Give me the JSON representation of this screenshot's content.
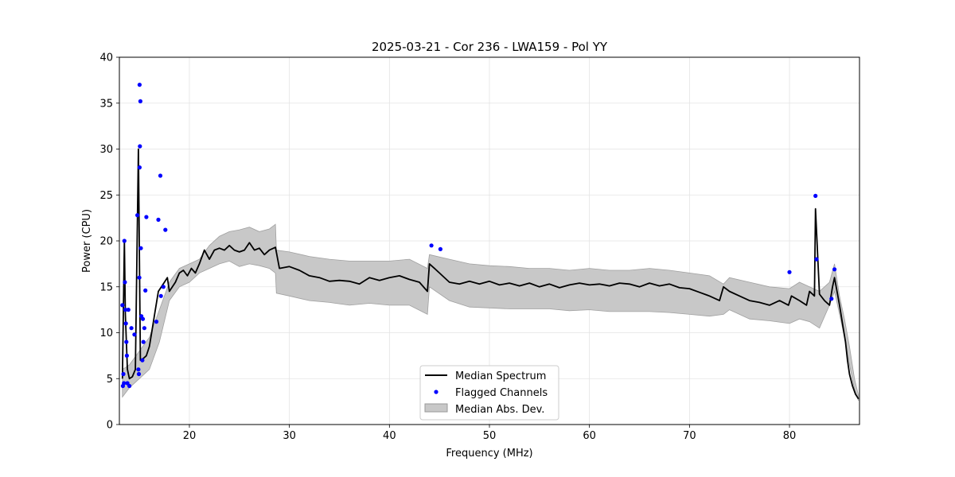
{
  "chart_data": {
    "type": "line",
    "title": "2025-03-21 - Cor 236 - LWA159 - Pol YY",
    "xlabel": "Frequency (MHz)",
    "ylabel": "Power (CPU)",
    "xlim": [
      13,
      87
    ],
    "ylim": [
      0,
      40
    ],
    "xticks": [
      20,
      30,
      40,
      50,
      60,
      70,
      80
    ],
    "yticks": [
      0,
      5,
      10,
      15,
      20,
      25,
      30,
      35,
      40
    ],
    "grid": true,
    "legend_position": "bottom-center",
    "series": [
      {
        "name": "Median Spectrum",
        "kind": "line",
        "color": "#000000",
        "x": [
          13.3,
          13.5,
          13.6,
          13.8,
          14.0,
          14.3,
          14.6,
          14.9,
          15.1,
          15.4,
          15.7,
          16.0,
          16.3,
          16.6,
          16.9,
          17.2,
          17.5,
          17.8,
          18.0,
          18.3,
          18.6,
          19.0,
          19.4,
          19.8,
          20.2,
          20.6,
          21.0,
          21.5,
          22.0,
          22.5,
          23.0,
          23.5,
          24.0,
          24.5,
          25.0,
          25.5,
          26.0,
          26.5,
          27.0,
          27.5,
          28.0,
          28.6,
          29.0,
          30.0,
          31.0,
          32.0,
          33.0,
          34.0,
          35.0,
          36.0,
          37.0,
          38.0,
          39.0,
          40.0,
          41.0,
          42.0,
          43.0,
          43.8,
          44.0,
          44.5,
          45.0,
          46.0,
          47.0,
          48.0,
          49.0,
          50.0,
          51.0,
          52.0,
          53.0,
          54.0,
          55.0,
          56.0,
          57.0,
          58.0,
          59.0,
          60.0,
          61.0,
          62.0,
          63.0,
          64.0,
          65.0,
          66.0,
          67.0,
          68.0,
          69.0,
          70.0,
          71.0,
          72.0,
          73.0,
          73.4,
          74.0,
          75.0,
          76.0,
          77.0,
          78.0,
          79.0,
          79.9,
          80.2,
          81.0,
          81.7,
          82.0,
          82.5,
          82.6,
          83.0,
          83.5,
          84.0,
          84.3,
          84.5,
          85.0,
          85.3,
          85.6,
          85.8,
          86.0,
          86.3,
          86.6,
          86.9
        ],
        "values": [
          5.0,
          20.0,
          12.0,
          6.0,
          5.0,
          5.2,
          6.0,
          30.0,
          7.0,
          7.2,
          7.5,
          8.5,
          10.5,
          12.5,
          14.5,
          15.0,
          15.5,
          16.0,
          14.5,
          15.0,
          15.5,
          16.5,
          16.8,
          16.2,
          17.0,
          16.5,
          17.5,
          19.0,
          18.0,
          19.0,
          19.2,
          19.0,
          19.5,
          19.0,
          18.8,
          19.0,
          19.8,
          19.0,
          19.2,
          18.5,
          19.0,
          19.3,
          17.0,
          17.2,
          16.8,
          16.2,
          16.0,
          15.6,
          15.7,
          15.6,
          15.3,
          16.0,
          15.7,
          16.0,
          16.2,
          15.8,
          15.5,
          14.5,
          17.5,
          17.0,
          16.5,
          15.5,
          15.3,
          15.6,
          15.3,
          15.6,
          15.2,
          15.4,
          15.1,
          15.4,
          15.0,
          15.3,
          14.9,
          15.2,
          15.4,
          15.2,
          15.3,
          15.1,
          15.4,
          15.3,
          15.0,
          15.4,
          15.1,
          15.3,
          14.9,
          14.8,
          14.4,
          14.0,
          13.5,
          15.0,
          14.5,
          14.0,
          13.5,
          13.3,
          13.0,
          13.5,
          13.0,
          14.0,
          13.5,
          13.0,
          14.5,
          14.0,
          23.5,
          14.2,
          13.5,
          13.0,
          15.0,
          16.0,
          13.0,
          11.0,
          9.0,
          7.0,
          5.5,
          4.2,
          3.3,
          2.8
        ]
      },
      {
        "name": "Flagged Channels",
        "kind": "scatter",
        "color": "#0000ff",
        "points": [
          [
            13.3,
            13.0
          ],
          [
            13.35,
            4.2
          ],
          [
            13.4,
            5.5
          ],
          [
            13.45,
            4.5
          ],
          [
            13.5,
            20.0
          ],
          [
            13.55,
            15.5
          ],
          [
            13.6,
            12.5
          ],
          [
            13.65,
            11.0
          ],
          [
            13.7,
            9.0
          ],
          [
            13.75,
            7.5
          ],
          [
            13.8,
            4.5
          ],
          [
            13.9,
            12.5
          ],
          [
            14.0,
            4.2
          ],
          [
            14.2,
            10.5
          ],
          [
            14.5,
            9.8
          ],
          [
            14.8,
            22.8
          ],
          [
            14.9,
            6.0
          ],
          [
            14.95,
            5.5
          ],
          [
            15.0,
            16.0
          ],
          [
            15.02,
            28.0
          ],
          [
            15.05,
            30.3
          ],
          [
            15.1,
            35.2
          ],
          [
            15.02,
            37.0
          ],
          [
            15.15,
            19.2
          ],
          [
            15.2,
            11.8
          ],
          [
            15.3,
            7.0
          ],
          [
            15.35,
            11.5
          ],
          [
            15.4,
            9.0
          ],
          [
            15.5,
            10.5
          ],
          [
            15.6,
            14.6
          ],
          [
            15.7,
            22.6
          ],
          [
            16.7,
            11.2
          ],
          [
            16.9,
            22.3
          ],
          [
            17.1,
            27.1
          ],
          [
            17.15,
            14.0
          ],
          [
            17.4,
            15.0
          ],
          [
            17.6,
            21.2
          ],
          [
            44.2,
            19.5
          ],
          [
            45.1,
            19.1
          ],
          [
            80.0,
            16.6
          ],
          [
            82.6,
            24.9
          ],
          [
            82.7,
            18.0
          ],
          [
            84.2,
            13.7
          ],
          [
            84.5,
            16.9
          ]
        ]
      },
      {
        "name": "Median Abs. Dev.",
        "kind": "band",
        "color": "#c8c8c8",
        "x": [
          13.3,
          14.0,
          15.0,
          16.0,
          17.0,
          18.0,
          19.0,
          20.0,
          21.0,
          22.0,
          23.0,
          24.0,
          25.0,
          26.0,
          27.0,
          28.0,
          28.6,
          28.7,
          30.0,
          32.0,
          34.0,
          36.0,
          38.0,
          40.0,
          42.0,
          43.8,
          44.0,
          46.0,
          48.0,
          50.0,
          52.0,
          54.0,
          56.0,
          58.0,
          60.0,
          62.0,
          64.0,
          66.0,
          68.0,
          70.0,
          72.0,
          73.4,
          74.0,
          76.0,
          78.0,
          80.0,
          81.0,
          82.0,
          83.0,
          84.0,
          84.5,
          85.0,
          85.5,
          86.0,
          86.5,
          86.9
        ],
        "upper": [
          6.0,
          6.5,
          8.0,
          9.5,
          12.5,
          15.5,
          17.0,
          17.5,
          18.0,
          19.5,
          20.5,
          21.0,
          21.2,
          21.5,
          21.0,
          21.3,
          21.8,
          19.0,
          18.8,
          18.3,
          18.0,
          17.8,
          17.8,
          17.8,
          18.0,
          17.0,
          18.5,
          18.0,
          17.5,
          17.3,
          17.2,
          17.0,
          17.0,
          16.8,
          17.0,
          16.8,
          16.8,
          17.0,
          16.8,
          16.5,
          16.2,
          15.3,
          16.0,
          15.5,
          15.0,
          14.8,
          15.5,
          15.0,
          14.5,
          15.5,
          17.5,
          14.0,
          11.5,
          8.5,
          5.0,
          3.2
        ],
        "lower": [
          3.0,
          4.0,
          5.0,
          6.0,
          9.0,
          13.5,
          15.0,
          15.5,
          16.5,
          17.0,
          17.5,
          17.8,
          17.2,
          17.5,
          17.3,
          17.0,
          16.5,
          14.3,
          14.0,
          13.5,
          13.3,
          13.0,
          13.2,
          13.0,
          13.0,
          12.0,
          15.0,
          13.5,
          12.8,
          12.7,
          12.6,
          12.6,
          12.6,
          12.4,
          12.5,
          12.3,
          12.3,
          12.3,
          12.2,
          12.0,
          11.8,
          12.0,
          12.5,
          11.5,
          11.3,
          11.0,
          11.5,
          11.2,
          10.5,
          13.0,
          14.5,
          12.0,
          9.5,
          6.5,
          3.8,
          2.6
        ]
      }
    ],
    "legend": [
      "Median Spectrum",
      "Flagged Channels",
      "Median Abs. Dev."
    ]
  }
}
